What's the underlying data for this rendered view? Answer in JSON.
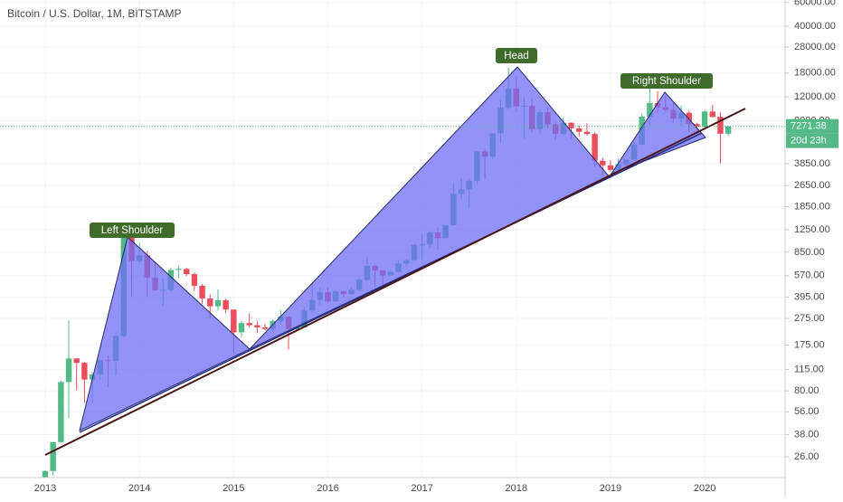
{
  "chart_data": {
    "type": "candlestick",
    "title": "Bitcoin / U.S. Dollar, 1M, BITSTAMP",
    "log_scale": true,
    "grid": true,
    "up_color": "#53b987",
    "down_color": "#eb4d5c",
    "categories": [
      "2013",
      null,
      null,
      null,
      null,
      null,
      null,
      null,
      null,
      null,
      null,
      null,
      "2014",
      null,
      null,
      null,
      null,
      null,
      null,
      null,
      null,
      null,
      null,
      null,
      "2015",
      null,
      null,
      null,
      null,
      null,
      null,
      null,
      null,
      null,
      null,
      null,
      "2016",
      null,
      null,
      null,
      null,
      null,
      null,
      null,
      null,
      null,
      null,
      null,
      "2017",
      null,
      null,
      null,
      null,
      null,
      null,
      null,
      null,
      null,
      null,
      null,
      "2018",
      null,
      null,
      null,
      null,
      null,
      null,
      null,
      null,
      null,
      null,
      null,
      "2019",
      null,
      null,
      null,
      null,
      null,
      null,
      null,
      null,
      null,
      null,
      null,
      "2020",
      null,
      null,
      null
    ],
    "open": [
      13.5,
      20.4,
      33.4,
      93,
      139,
      129,
      97,
      106,
      135,
      133,
      204,
      1129,
      732,
      805,
      550,
      445,
      447,
      628,
      640,
      585,
      480,
      387,
      338,
      375,
      320,
      217,
      254,
      245,
      236,
      230,
      263,
      284,
      230,
      236,
      314,
      377,
      430,
      368,
      437,
      416,
      448,
      531,
      673,
      624,
      573,
      608,
      701,
      742,
      963,
      970,
      1190,
      1080,
      1350,
      2300,
      2480,
      2870,
      4735,
      4340,
      6450,
      9950,
      13850,
      10220,
      10320,
      6930,
      9240,
      7500,
      6390,
      7730,
      7020,
      6630,
      6370,
      4040,
      3740,
      3460,
      3810,
      4110,
      5320,
      8560,
      10820,
      10080,
      9590,
      8290,
      9140,
      7550,
      7190,
      9350,
      8540,
      6410
    ],
    "high": [
      20.7,
      33.5,
      95,
      266,
      140,
      131,
      111,
      136,
      145,
      219,
      1163,
      1163,
      1000,
      860,
      720,
      545,
      650,
      680,
      650,
      600,
      495,
      415,
      450,
      385,
      320,
      265,
      300,
      262,
      250,
      270,
      316,
      286,
      245,
      335,
      500,
      465,
      462,
      445,
      440,
      470,
      545,
      780,
      685,
      630,
      630,
      740,
      755,
      975,
      1160,
      1215,
      1300,
      1350,
      2770,
      3000,
      2950,
      4750,
      4980,
      6470,
      11400,
      19660,
      17170,
      11780,
      11690,
      9760,
      9990,
      7780,
      8500,
      7760,
      7400,
      7680,
      6560,
      4250,
      4080,
      4210,
      4140,
      5600,
      9050,
      13880,
      13200,
      12330,
      10940,
      10370,
      9510,
      7750,
      9570,
      10500,
      9190,
      7300
    ],
    "low": [
      13.1,
      19.1,
      33.1,
      50,
      81,
      65,
      65,
      97,
      85,
      105,
      200,
      400,
      700,
      400,
      440,
      340,
      430,
      550,
      565,
      440,
      350,
      275,
      315,
      300,
      152,
      200,
      235,
      215,
      225,
      220,
      253,
      162,
      225,
      235,
      300,
      345,
      355,
      365,
      395,
      412,
      435,
      520,
      470,
      465,
      570,
      605,
      675,
      735,
      750,
      915,
      890,
      1075,
      1340,
      2080,
      1830,
      2690,
      2970,
      4160,
      5520,
      9700,
      9250,
      5900,
      6600,
      6430,
      7050,
      5780,
      6080,
      5880,
      6100,
      6200,
      3650,
      3120,
      3350,
      3380,
      3690,
      4100,
      5300,
      7450,
      9070,
      9320,
      7730,
      7300,
      6520,
      6430,
      6860,
      8420,
      3850,
      6150
    ],
    "close": [
      20.4,
      33.4,
      93,
      139,
      129,
      97,
      106,
      135,
      133,
      204,
      1129,
      732,
      805,
      550,
      445,
      447,
      628,
      640,
      585,
      480,
      387,
      338,
      375,
      320,
      217,
      254,
      245,
      236,
      230,
      263,
      284,
      230,
      236,
      314,
      377,
      430,
      368,
      437,
      416,
      448,
      531,
      673,
      624,
      573,
      608,
      701,
      742,
      963,
      970,
      1190,
      1080,
      1350,
      2300,
      2480,
      2870,
      4735,
      4340,
      6450,
      9950,
      13850,
      10220,
      10320,
      6930,
      9240,
      7500,
      6390,
      7730,
      7020,
      6630,
      6370,
      4040,
      3740,
      3460,
      3810,
      4110,
      5320,
      8560,
      10820,
      10080,
      9590,
      8290,
      9140,
      7550,
      7190,
      9350,
      8540,
      6410,
      7271.38
    ],
    "ylim": [
      13,
      62600
    ],
    "yticks": [
      {
        "value": 60000,
        "label": "60000.00"
      },
      {
        "value": 40000,
        "label": "40000.00"
      },
      {
        "value": 28000,
        "label": "28000.00"
      },
      {
        "value": 18000,
        "label": "18000.00"
      },
      {
        "value": 12000,
        "label": "12000.00"
      },
      {
        "value": 8000,
        "label": "8000.00"
      },
      {
        "value": 3850,
        "label": "3850.00"
      },
      {
        "value": 2650,
        "label": "2650.00"
      },
      {
        "value": 1850,
        "label": "1850.00"
      },
      {
        "value": 1250,
        "label": "1250.00"
      },
      {
        "value": 850,
        "label": "850.00"
      },
      {
        "value": 570,
        "label": "570.00"
      },
      {
        "value": 395,
        "label": "395.00"
      },
      {
        "value": 275,
        "label": "275.00"
      },
      {
        "value": 175,
        "label": "175.00"
      },
      {
        "value": 115,
        "label": "115.00"
      },
      {
        "value": 80,
        "label": "80.00"
      },
      {
        "value": 56,
        "label": "56.00"
      },
      {
        "value": 38,
        "label": "38.00"
      },
      {
        "value": 26,
        "label": "26.00"
      }
    ],
    "last_price": 7271.38,
    "countdown": "20d 23h",
    "annotations": [
      "Left Shoulder",
      "Head",
      "Right Shoulder"
    ]
  }
}
